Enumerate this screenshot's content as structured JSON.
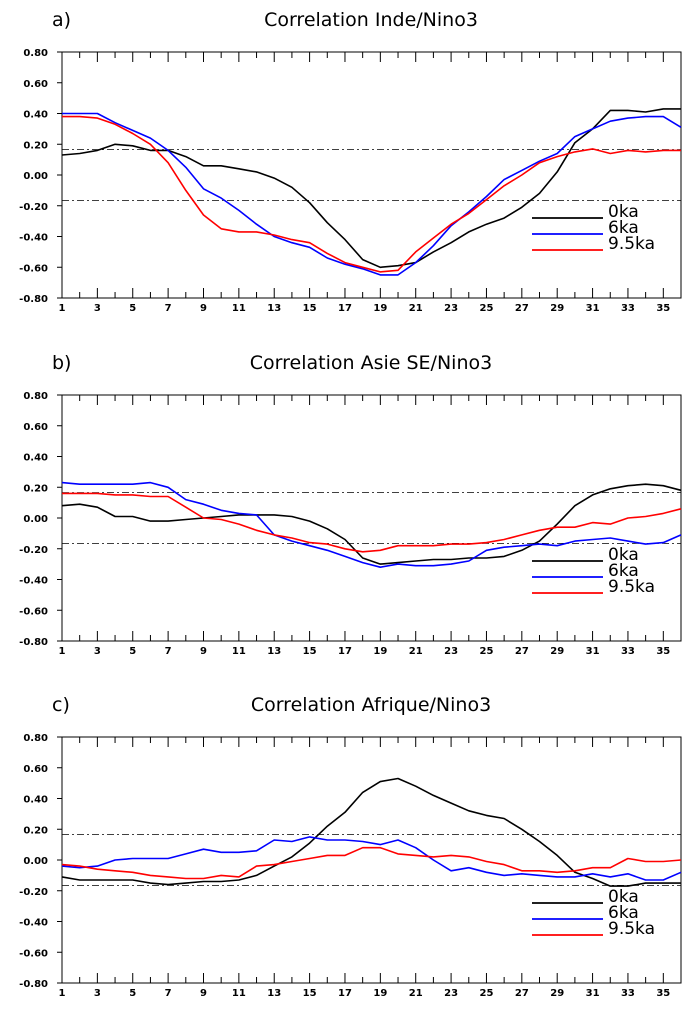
{
  "chart_data": [
    {
      "type": "line",
      "panel": "a)",
      "title": "Correlation Inde/Nino3",
      "x": [
        1,
        2,
        3,
        4,
        5,
        6,
        7,
        8,
        9,
        10,
        11,
        12,
        13,
        14,
        15,
        16,
        17,
        18,
        19,
        20,
        21,
        22,
        23,
        24,
        25,
        26,
        27,
        28,
        29,
        30,
        31,
        32,
        33,
        34,
        35,
        36
      ],
      "xlim": [
        1,
        36
      ],
      "xticks": [
        1,
        3,
        5,
        7,
        9,
        11,
        13,
        15,
        17,
        19,
        21,
        23,
        25,
        27,
        29,
        31,
        33,
        35
      ],
      "ylim": [
        -0.8,
        0.8
      ],
      "yticks": [
        -0.8,
        -0.6,
        -0.4,
        -0.2,
        0.0,
        0.2,
        0.4,
        0.6,
        0.8
      ],
      "ytick_labels": [
        "-0.80",
        "-0.60",
        "-0.40",
        "-0.20",
        "0.00",
        "0.20",
        "0.40",
        "0.60",
        "0.80"
      ],
      "reference_lines": [
        0.165,
        -0.165
      ],
      "series": [
        {
          "name": "0ka",
          "color": "#000000",
          "values": [
            0.13,
            0.14,
            0.16,
            0.2,
            0.19,
            0.16,
            0.16,
            0.12,
            0.06,
            0.06,
            0.04,
            0.02,
            -0.02,
            -0.08,
            -0.18,
            -0.31,
            -0.42,
            -0.55,
            -0.6,
            -0.59,
            -0.57,
            -0.5,
            -0.44,
            -0.37,
            -0.32,
            -0.28,
            -0.21,
            -0.12,
            0.02,
            0.21,
            0.3,
            0.42,
            0.42,
            0.41,
            0.43,
            0.43
          ]
        },
        {
          "name": "6ka",
          "color": "#0000ff",
          "values": [
            0.4,
            0.4,
            0.4,
            0.34,
            0.29,
            0.24,
            0.16,
            0.05,
            -0.09,
            -0.15,
            -0.23,
            -0.32,
            -0.4,
            -0.44,
            -0.47,
            -0.54,
            -0.58,
            -0.61,
            -0.65,
            -0.65,
            -0.57,
            -0.46,
            -0.33,
            -0.24,
            -0.14,
            -0.03,
            0.03,
            0.09,
            0.14,
            0.25,
            0.3,
            0.35,
            0.37,
            0.38,
            0.38,
            0.31
          ]
        },
        {
          "name": "9.5ka",
          "color": "#ff0000",
          "values": [
            0.38,
            0.38,
            0.37,
            0.33,
            0.27,
            0.2,
            0.08,
            -0.1,
            -0.26,
            -0.35,
            -0.37,
            -0.37,
            -0.39,
            -0.42,
            -0.44,
            -0.51,
            -0.57,
            -0.6,
            -0.63,
            -0.62,
            -0.5,
            -0.41,
            -0.32,
            -0.25,
            -0.16,
            -0.07,
            0.0,
            0.08,
            0.12,
            0.15,
            0.17,
            0.14,
            0.16,
            0.15,
            0.16,
            0.16
          ]
        }
      ]
    },
    {
      "type": "line",
      "panel": "b)",
      "title": "Correlation Asie SE/Nino3",
      "x": [
        1,
        2,
        3,
        4,
        5,
        6,
        7,
        8,
        9,
        10,
        11,
        12,
        13,
        14,
        15,
        16,
        17,
        18,
        19,
        20,
        21,
        22,
        23,
        24,
        25,
        26,
        27,
        28,
        29,
        30,
        31,
        32,
        33,
        34,
        35,
        36
      ],
      "xlim": [
        1,
        36
      ],
      "xticks": [
        1,
        3,
        5,
        7,
        9,
        11,
        13,
        15,
        17,
        19,
        21,
        23,
        25,
        27,
        29,
        31,
        33,
        35
      ],
      "ylim": [
        -0.8,
        0.8
      ],
      "yticks": [
        -0.8,
        -0.6,
        -0.4,
        -0.2,
        0.0,
        0.2,
        0.4,
        0.6,
        0.8
      ],
      "ytick_labels": [
        "-0.80",
        "-0.60",
        "-0.40",
        "-0.20",
        "0.00",
        "0.20",
        "0.40",
        "0.60",
        "0.80"
      ],
      "reference_lines": [
        0.165,
        -0.165
      ],
      "series": [
        {
          "name": "0ka",
          "color": "#000000",
          "values": [
            0.08,
            0.09,
            0.07,
            0.01,
            0.01,
            -0.02,
            -0.02,
            -0.01,
            0.0,
            0.01,
            0.02,
            0.02,
            0.02,
            0.01,
            -0.02,
            -0.07,
            -0.14,
            -0.26,
            -0.3,
            -0.29,
            -0.28,
            -0.27,
            -0.27,
            -0.26,
            -0.26,
            -0.25,
            -0.21,
            -0.15,
            -0.04,
            0.08,
            0.15,
            0.19,
            0.21,
            0.22,
            0.21,
            0.18
          ]
        },
        {
          "name": "6ka",
          "color": "#0000ff",
          "values": [
            0.23,
            0.22,
            0.22,
            0.22,
            0.22,
            0.23,
            0.2,
            0.12,
            0.09,
            0.05,
            0.03,
            0.02,
            -0.11,
            -0.15,
            -0.18,
            -0.21,
            -0.25,
            -0.29,
            -0.32,
            -0.3,
            -0.31,
            -0.31,
            -0.3,
            -0.28,
            -0.21,
            -0.19,
            -0.18,
            -0.17,
            -0.18,
            -0.15,
            -0.14,
            -0.13,
            -0.15,
            -0.17,
            -0.16,
            -0.11
          ]
        },
        {
          "name": "9.5ka",
          "color": "#ff0000",
          "values": [
            0.16,
            0.16,
            0.16,
            0.15,
            0.15,
            0.14,
            0.14,
            0.07,
            0.0,
            -0.01,
            -0.04,
            -0.08,
            -0.11,
            -0.13,
            -0.16,
            -0.17,
            -0.2,
            -0.22,
            -0.21,
            -0.18,
            -0.18,
            -0.18,
            -0.17,
            -0.17,
            -0.16,
            -0.14,
            -0.11,
            -0.08,
            -0.06,
            -0.06,
            -0.03,
            -0.04,
            0.0,
            0.01,
            0.03,
            0.06
          ]
        }
      ]
    },
    {
      "type": "line",
      "panel": "c)",
      "title": "Correlation Afrique/Nino3",
      "x": [
        1,
        2,
        3,
        4,
        5,
        6,
        7,
        8,
        9,
        10,
        11,
        12,
        13,
        14,
        15,
        16,
        17,
        18,
        19,
        20,
        21,
        22,
        23,
        24,
        25,
        26,
        27,
        28,
        29,
        30,
        31,
        32,
        33,
        34,
        35,
        36
      ],
      "xlim": [
        1,
        36
      ],
      "xticks": [
        1,
        3,
        5,
        7,
        9,
        11,
        13,
        15,
        17,
        19,
        21,
        23,
        25,
        27,
        29,
        31,
        33,
        35
      ],
      "ylim": [
        -0.8,
        0.8
      ],
      "yticks": [
        -0.8,
        -0.6,
        -0.4,
        -0.2,
        0.0,
        0.2,
        0.4,
        0.6,
        0.8
      ],
      "ytick_labels": [
        "-0.80",
        "-0.60",
        "-0.40",
        "-0.20",
        "0.00",
        "0.20",
        "0.40",
        "0.60",
        "0.80"
      ],
      "reference_lines": [
        0.165,
        -0.165
      ],
      "series": [
        {
          "name": "0ka",
          "color": "#000000",
          "values": [
            -0.11,
            -0.13,
            -0.13,
            -0.13,
            -0.13,
            -0.15,
            -0.16,
            -0.15,
            -0.14,
            -0.14,
            -0.13,
            -0.1,
            -0.04,
            0.02,
            0.11,
            0.22,
            0.31,
            0.44,
            0.51,
            0.53,
            0.48,
            0.42,
            0.37,
            0.32,
            0.29,
            0.27,
            0.2,
            0.12,
            0.03,
            -0.08,
            -0.12,
            -0.17,
            -0.17,
            -0.15,
            -0.15,
            -0.15
          ]
        },
        {
          "name": "6ka",
          "color": "#0000ff",
          "values": [
            -0.04,
            -0.05,
            -0.04,
            0.0,
            0.01,
            0.01,
            0.01,
            0.04,
            0.07,
            0.05,
            0.05,
            0.06,
            0.13,
            0.12,
            0.15,
            0.13,
            0.13,
            0.12,
            0.1,
            0.13,
            0.08,
            0.0,
            -0.07,
            -0.05,
            -0.08,
            -0.1,
            -0.09,
            -0.1,
            -0.11,
            -0.11,
            -0.09,
            -0.11,
            -0.09,
            -0.13,
            -0.13,
            -0.08
          ]
        },
        {
          "name": "9.5ka",
          "color": "#ff0000",
          "values": [
            -0.03,
            -0.04,
            -0.06,
            -0.07,
            -0.08,
            -0.1,
            -0.11,
            -0.12,
            -0.12,
            -0.1,
            -0.11,
            -0.04,
            -0.03,
            -0.01,
            0.01,
            0.03,
            0.03,
            0.08,
            0.08,
            0.04,
            0.03,
            0.02,
            0.03,
            0.02,
            -0.01,
            -0.03,
            -0.07,
            -0.07,
            -0.08,
            -0.07,
            -0.05,
            -0.05,
            0.01,
            -0.01,
            -0.01,
            0.0
          ]
        }
      ]
    }
  ]
}
